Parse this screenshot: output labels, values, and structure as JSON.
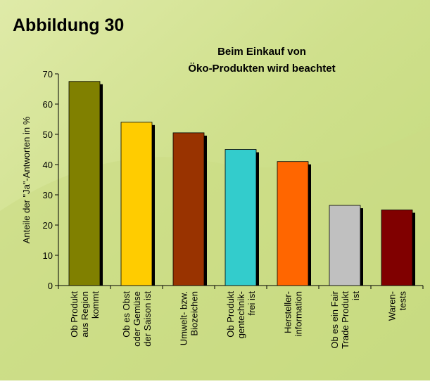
{
  "heading": "Abbildung 30",
  "chart_data": {
    "type": "bar",
    "title": [
      "Beim Einkauf von",
      "Öko-Produkten wird beachtet"
    ],
    "y_label": "Anteile der \"Ja\"-Antworten in %",
    "categories": [
      [
        "Ob Produkt",
        "aus Region",
        "kommt"
      ],
      [
        "Ob es Obst",
        "oder Gemüse",
        "der Saison ist"
      ],
      [
        "Umwelt- bzw.",
        "Biozeichen"
      ],
      [
        "Ob Produkt",
        "gentechnik-",
        "frei ist"
      ],
      [
        "Hersteller-",
        "information"
      ],
      [
        "Ob es ein Fair",
        "Trade Produkt",
        "ist"
      ],
      [
        "Waren-",
        "tests"
      ]
    ],
    "values": [
      67.5,
      54,
      50.5,
      45,
      41,
      26.5,
      25
    ],
    "colors": [
      "#808000",
      "#ffcc00",
      "#993300",
      "#33cccc",
      "#ff6600",
      "#c0c0c0",
      "#800000"
    ],
    "ylim": [
      0,
      70
    ],
    "yticks": [
      0,
      10,
      20,
      30,
      40,
      50,
      60,
      70
    ]
  }
}
